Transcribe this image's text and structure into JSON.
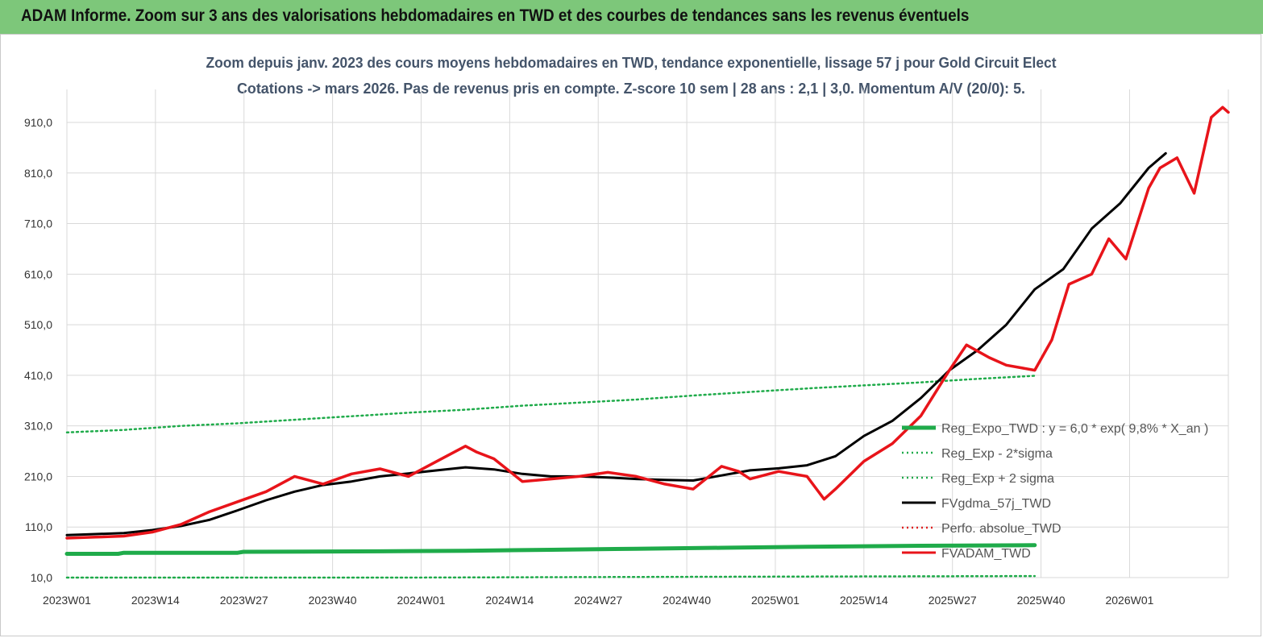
{
  "header": {
    "title": "ADAM Informe. Zoom sur 3 ans des valorisations hebdomadaires en TWD et des courbes de tendances sans les revenus éventuels"
  },
  "chart_data": {
    "type": "line",
    "title_line1": "Zoom depuis janv. 2023 des cours moyens hebdomadaires en TWD, tendance exponentielle, lissage 57 j pour Gold Circuit Elect",
    "title_line2": "Cotations -> mars 2026. Pas de revenus pris en compte. Z-score 10 sem | 28 ans : 2,1 | 3,0. Momentum A/V (20/0): 5.",
    "xlabel": "",
    "ylabel": "",
    "ylim": [
      10,
      950
    ],
    "y_ticks": [
      "910,0",
      "810,0",
      "710,0",
      "610,0",
      "510,0",
      "410,0",
      "310,0",
      "210,0",
      "110,0",
      "10,0"
    ],
    "y_tick_values": [
      910,
      810,
      710,
      610,
      510,
      410,
      310,
      210,
      110,
      10
    ],
    "x_ticks": [
      "2023W01",
      "2023W14",
      "2023W27",
      "2023W40",
      "2024W01",
      "2024W14",
      "2024W27",
      "2024W40",
      "2025W01",
      "2025W14",
      "2025W27",
      "2025W40",
      "2026W01"
    ],
    "x_tick_index": [
      0,
      13,
      26,
      39,
      52,
      65,
      78,
      91,
      104,
      117,
      130,
      143,
      156
    ],
    "n_weeks": 170,
    "legend_position": "right",
    "series": [
      {
        "name": "Reg_Expo_TWD : y = 6,0 * exp( 9,8% * X_an )",
        "color": "#1fab4a",
        "style": "solid",
        "points": [
          [
            0,
            57
          ],
          [
            9,
            57
          ],
          [
            10,
            59
          ],
          [
            30,
            59
          ],
          [
            31,
            61
          ],
          [
            55,
            62
          ],
          [
            70,
            63
          ],
          [
            85,
            65
          ],
          [
            100,
            67
          ],
          [
            115,
            69
          ],
          [
            130,
            71
          ],
          [
            150,
            73
          ],
          [
            170,
            74
          ]
        ]
      },
      {
        "name": "Reg_Exp - 2*sigma",
        "color": "#1fab4a",
        "style": "dotted",
        "points": [
          [
            0,
            10
          ],
          [
            60,
            10
          ],
          [
            90,
            11
          ],
          [
            130,
            12
          ],
          [
            170,
            13
          ]
        ]
      },
      {
        "name": "Reg_Exp + 2 sigma",
        "color": "#1fab4a",
        "style": "dotted",
        "points": [
          [
            0,
            297
          ],
          [
            10,
            302
          ],
          [
            20,
            310
          ],
          [
            30,
            315
          ],
          [
            40,
            322
          ],
          [
            50,
            329
          ],
          [
            60,
            336
          ],
          [
            70,
            342
          ],
          [
            80,
            350
          ],
          [
            90,
            356
          ],
          [
            100,
            362
          ],
          [
            110,
            370
          ],
          [
            120,
            377
          ],
          [
            130,
            384
          ],
          [
            140,
            390
          ],
          [
            150,
            396
          ],
          [
            160,
            403
          ],
          [
            170,
            409
          ]
        ]
      },
      {
        "name": "FVgdma_57j_TWD",
        "color": "#000000",
        "style": "solid",
        "points": [
          [
            0,
            94
          ],
          [
            5,
            96
          ],
          [
            10,
            98
          ],
          [
            15,
            104
          ],
          [
            20,
            112
          ],
          [
            25,
            124
          ],
          [
            30,
            143
          ],
          [
            35,
            163
          ],
          [
            40,
            180
          ],
          [
            45,
            193
          ],
          [
            50,
            200
          ],
          [
            55,
            210
          ],
          [
            60,
            216
          ],
          [
            65,
            222
          ],
          [
            70,
            228
          ],
          [
            75,
            224
          ],
          [
            80,
            215
          ],
          [
            85,
            210
          ],
          [
            90,
            210
          ],
          [
            95,
            208
          ],
          [
            100,
            205
          ],
          [
            105,
            203
          ],
          [
            110,
            202
          ],
          [
            115,
            212
          ],
          [
            120,
            222
          ],
          [
            125,
            226
          ],
          [
            130,
            232
          ],
          [
            135,
            250
          ],
          [
            140,
            290
          ],
          [
            145,
            320
          ],
          [
            150,
            365
          ],
          [
            155,
            420
          ],
          [
            160,
            460
          ],
          [
            165,
            510
          ],
          [
            170,
            580
          ],
          [
            175,
            620
          ],
          [
            180,
            700
          ],
          [
            185,
            750
          ],
          [
            190,
            820
          ],
          [
            193,
            849
          ]
        ]
      },
      {
        "name": "Perfo. absolue_TWD",
        "color": "#e02020",
        "style": "dotted",
        "points": []
      },
      {
        "name": "FVADAM_TWD",
        "color": "#e8141a",
        "style": "solid",
        "points": [
          [
            0,
            88
          ],
          [
            5,
            90
          ],
          [
            10,
            92
          ],
          [
            15,
            100
          ],
          [
            20,
            115
          ],
          [
            25,
            140
          ],
          [
            30,
            160
          ],
          [
            35,
            180
          ],
          [
            40,
            210
          ],
          [
            45,
            195
          ],
          [
            50,
            215
          ],
          [
            55,
            225
          ],
          [
            60,
            210
          ],
          [
            65,
            240
          ],
          [
            70,
            270
          ],
          [
            72,
            258
          ],
          [
            75,
            245
          ],
          [
            80,
            200
          ],
          [
            85,
            205
          ],
          [
            90,
            210
          ],
          [
            95,
            218
          ],
          [
            100,
            210
          ],
          [
            105,
            195
          ],
          [
            110,
            185
          ],
          [
            115,
            230
          ],
          [
            118,
            220
          ],
          [
            120,
            205
          ],
          [
            125,
            220
          ],
          [
            130,
            210
          ],
          [
            133,
            165
          ],
          [
            135,
            185
          ],
          [
            140,
            240
          ],
          [
            145,
            275
          ],
          [
            150,
            330
          ],
          [
            155,
            420
          ],
          [
            158,
            470
          ],
          [
            162,
            445
          ],
          [
            165,
            430
          ],
          [
            170,
            420
          ],
          [
            173,
            480
          ],
          [
            176,
            590
          ],
          [
            180,
            610
          ],
          [
            183,
            680
          ],
          [
            186,
            640
          ],
          [
            190,
            780
          ],
          [
            192,
            820
          ],
          [
            195,
            840
          ],
          [
            198,
            770
          ],
          [
            201,
            920
          ],
          [
            203,
            940
          ],
          [
            204,
            930
          ]
        ]
      }
    ]
  }
}
